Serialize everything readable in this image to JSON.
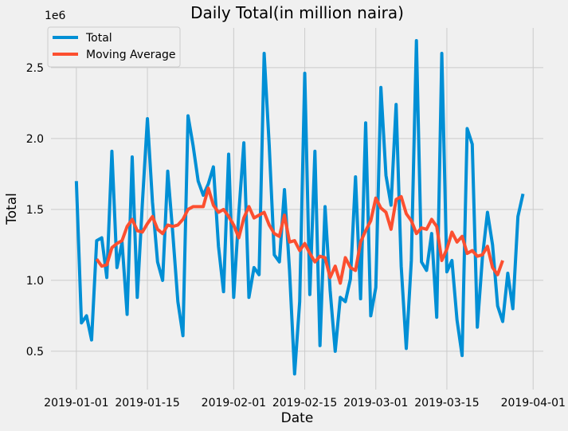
{
  "chart_data": {
    "type": "line",
    "title": "Daily Total(in million naira)",
    "xlabel": "Date",
    "ylabel": "Total",
    "y_offset_label": "1e6",
    "x_ticks": [
      "2019-01-01",
      "2019-01-15",
      "2019-02-01",
      "2019-02-15",
      "2019-03-01",
      "2019-03-15",
      "2019-04-01"
    ],
    "y_ticks": [
      "0.5",
      "1.0",
      "1.5",
      "2.0",
      "2.5"
    ],
    "y_tick_values": [
      500000,
      1000000,
      1500000,
      2000000,
      2500000
    ],
    "xlim": [
      "2018-12-27",
      "2019-04-03"
    ],
    "ylim": [
      230000,
      2780000
    ],
    "grid": true,
    "legend_position": "top-left",
    "dates": [
      "2019-01-01",
      "2019-01-02",
      "2019-01-03",
      "2019-01-04",
      "2019-01-05",
      "2019-01-06",
      "2019-01-07",
      "2019-01-08",
      "2019-01-09",
      "2019-01-10",
      "2019-01-11",
      "2019-01-12",
      "2019-01-13",
      "2019-01-14",
      "2019-01-15",
      "2019-01-16",
      "2019-01-17",
      "2019-01-18",
      "2019-01-19",
      "2019-01-20",
      "2019-01-21",
      "2019-01-22",
      "2019-01-23",
      "2019-01-24",
      "2019-01-25",
      "2019-01-26",
      "2019-01-27",
      "2019-01-28",
      "2019-01-29",
      "2019-01-30",
      "2019-01-31",
      "2019-02-01",
      "2019-02-02",
      "2019-02-03",
      "2019-02-04",
      "2019-02-05",
      "2019-02-06",
      "2019-02-07",
      "2019-02-08",
      "2019-02-09",
      "2019-02-10",
      "2019-02-11",
      "2019-02-12",
      "2019-02-13",
      "2019-02-14",
      "2019-02-15",
      "2019-02-16",
      "2019-02-17",
      "2019-02-18",
      "2019-02-19",
      "2019-02-20",
      "2019-02-21",
      "2019-02-22",
      "2019-02-23",
      "2019-02-24",
      "2019-02-25",
      "2019-02-26",
      "2019-02-27",
      "2019-02-28",
      "2019-03-01",
      "2019-03-02",
      "2019-03-03",
      "2019-03-04",
      "2019-03-05",
      "2019-03-06",
      "2019-03-07",
      "2019-03-08",
      "2019-03-09",
      "2019-03-10",
      "2019-03-11",
      "2019-03-12",
      "2019-03-13",
      "2019-03-14",
      "2019-03-15",
      "2019-03-16",
      "2019-03-17",
      "2019-03-18",
      "2019-03-19",
      "2019-03-20",
      "2019-03-21",
      "2019-03-22",
      "2019-03-23",
      "2019-03-24",
      "2019-03-25",
      "2019-03-26",
      "2019-03-27",
      "2019-03-28",
      "2019-03-29",
      "2019-03-30"
    ],
    "series": [
      {
        "name": "Total",
        "color": "#008fd5",
        "values": [
          1700000,
          700000,
          750000,
          580000,
          1280000,
          1300000,
          1020000,
          1910000,
          1090000,
          1270000,
          760000,
          1870000,
          880000,
          1540000,
          2140000,
          1550000,
          1130000,
          1000000,
          1770000,
          1330000,
          850000,
          610000,
          2160000,
          1950000,
          1700000,
          1600000,
          1680000,
          1800000,
          1240000,
          920000,
          1890000,
          880000,
          1470000,
          1970000,
          880000,
          1090000,
          1040000,
          2600000,
          1950000,
          1180000,
          1130000,
          1640000,
          1070000,
          340000,
          850000,
          2460000,
          900000,
          1910000,
          540000,
          1520000,
          930000,
          500000,
          880000,
          850000,
          1010000,
          1730000,
          870000,
          2110000,
          750000,
          950000,
          2360000,
          1740000,
          1530000,
          2240000,
          1100000,
          520000,
          1140000,
          2690000,
          1130000,
          1070000,
          1330000,
          740000,
          2600000,
          1060000,
          1140000,
          720000,
          470000,
          2070000,
          1960000,
          670000,
          1160000,
          1480000,
          1250000,
          820000,
          710000,
          1050000,
          800000,
          1450000,
          1610000
        ]
      },
      {
        "name": "Moving Average",
        "color": "#fc4f30",
        "values": [
          null,
          null,
          null,
          null,
          1150000,
          1100000,
          1110000,
          1230000,
          1260000,
          1280000,
          1380000,
          1430000,
          1350000,
          1340000,
          1400000,
          1450000,
          1360000,
          1330000,
          1390000,
          1380000,
          1390000,
          1430000,
          1500000,
          1520000,
          1520000,
          1520000,
          1650000,
          1530000,
          1480000,
          1500000,
          1450000,
          1390000,
          1300000,
          1440000,
          1520000,
          1440000,
          1460000,
          1480000,
          1390000,
          1330000,
          1310000,
          1460000,
          1270000,
          1280000,
          1210000,
          1260000,
          1190000,
          1130000,
          1170000,
          1160000,
          1020000,
          1100000,
          980000,
          1160000,
          1090000,
          1070000,
          1270000,
          1350000,
          1420000,
          1580000,
          1510000,
          1480000,
          1360000,
          1570000,
          1590000,
          1470000,
          1420000,
          1330000,
          1370000,
          1360000,
          1430000,
          1380000,
          1140000,
          1220000,
          1340000,
          1270000,
          1310000,
          1190000,
          1210000,
          1170000,
          1180000,
          1240000,
          1090000,
          1040000,
          1140000,
          null,
          null,
          null,
          null
        ]
      }
    ]
  }
}
